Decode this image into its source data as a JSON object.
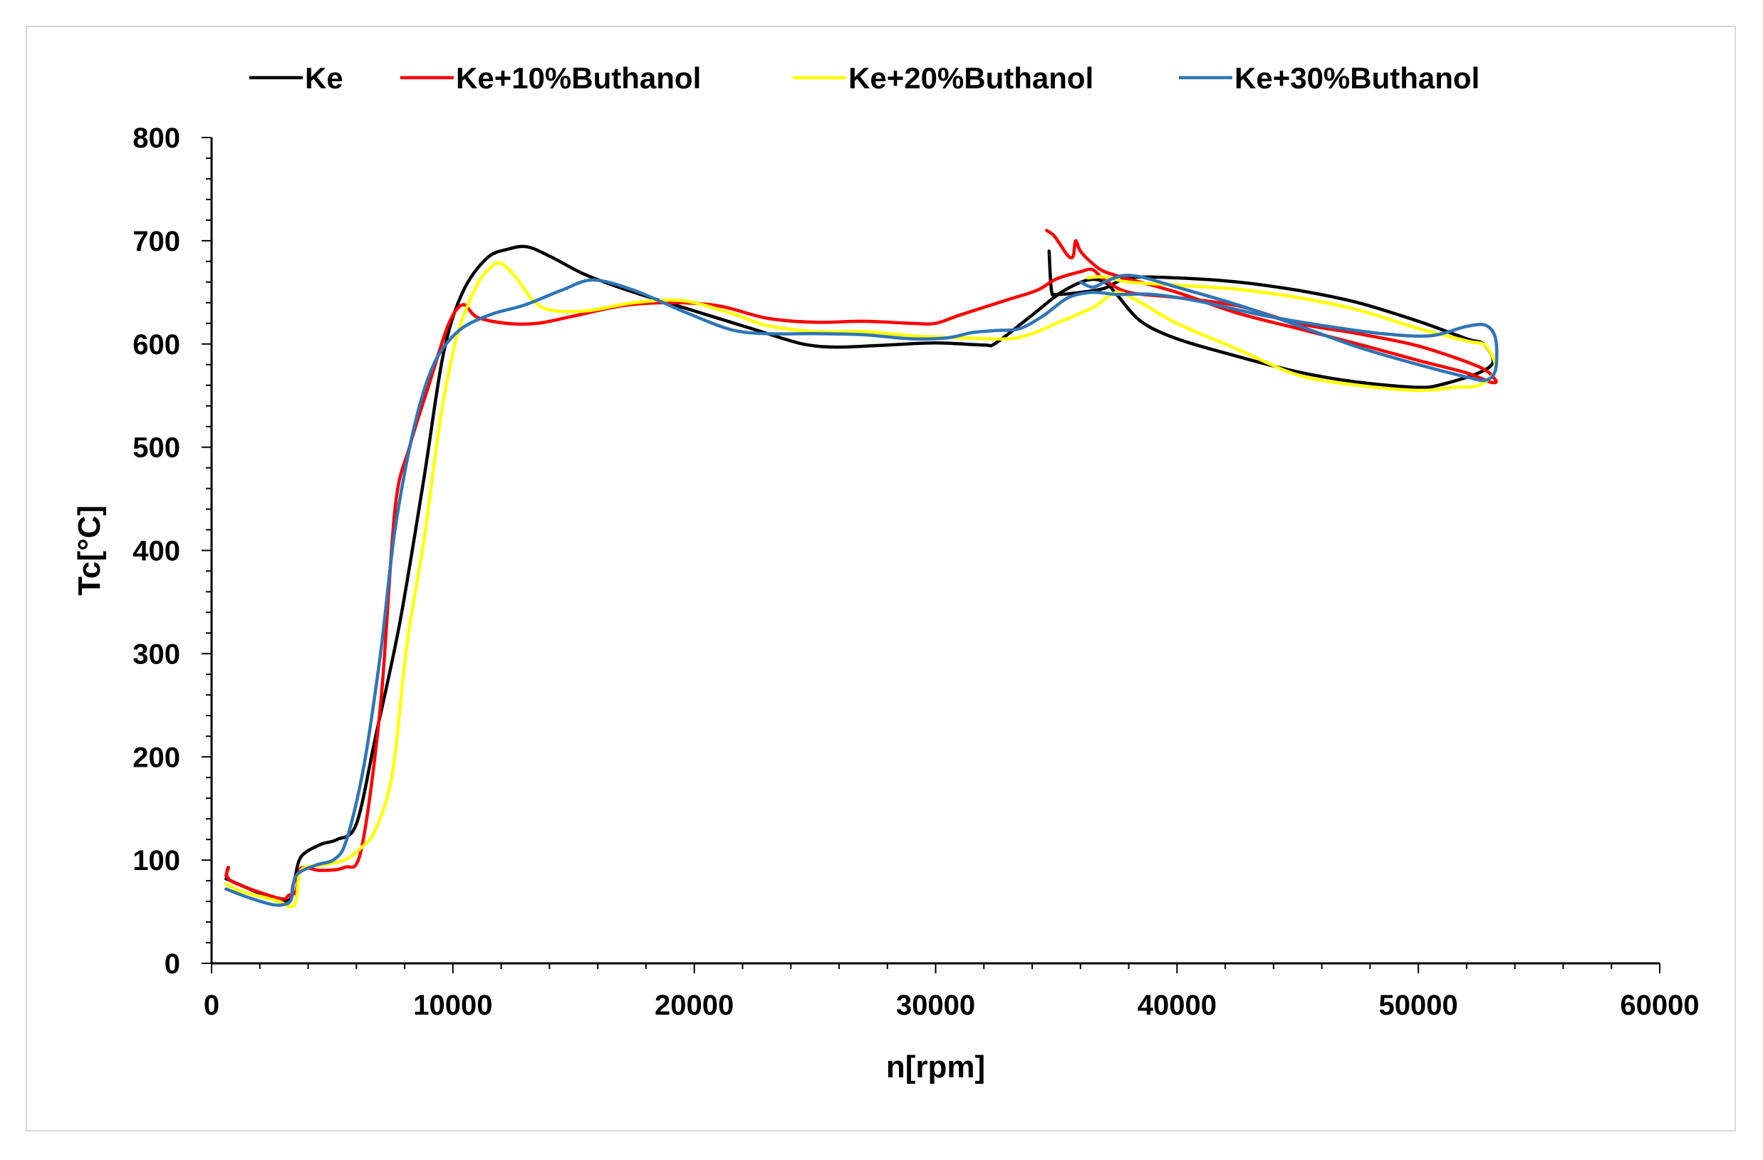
{
  "chart_data": {
    "type": "line",
    "title": "",
    "xlabel": "n[rpm]",
    "ylabel": "Tc[°C]",
    "xlim": [
      0,
      60000
    ],
    "ylim": [
      0,
      800
    ],
    "x_ticks": [
      0,
      10000,
      20000,
      30000,
      40000,
      50000,
      60000
    ],
    "y_ticks": [
      0,
      100,
      200,
      300,
      400,
      500,
      600,
      700,
      800
    ],
    "x_tick_labels": [
      "0",
      "10000",
      "20000",
      "30000",
      "40000",
      "50000",
      "60000"
    ],
    "y_tick_labels": [
      "0",
      "100",
      "200",
      "300",
      "400",
      "500",
      "600",
      "700",
      "800"
    ],
    "grid": false,
    "legend_position": "top",
    "series": [
      {
        "name": "Ke",
        "color": "#000000",
        "points": [
          [
            600,
            82
          ],
          [
            3000,
            60
          ],
          [
            3400,
            78
          ],
          [
            3700,
            103
          ],
          [
            4500,
            115
          ],
          [
            5200,
            120
          ],
          [
            6000,
            135
          ],
          [
            6800,
            220
          ],
          [
            7800,
            330
          ],
          [
            8800,
            470
          ],
          [
            9600,
            590
          ],
          [
            10400,
            650
          ],
          [
            11400,
            683
          ],
          [
            12300,
            692
          ],
          [
            13100,
            694
          ],
          [
            14100,
            684
          ],
          [
            15500,
            667
          ],
          [
            17500,
            650
          ],
          [
            20000,
            632
          ],
          [
            22500,
            614
          ],
          [
            24500,
            600
          ],
          [
            26000,
            597
          ],
          [
            28000,
            599
          ],
          [
            30000,
            601
          ],
          [
            32000,
            599
          ],
          [
            32500,
            601
          ],
          [
            34000,
            628
          ],
          [
            35200,
            650
          ],
          [
            36300,
            662
          ],
          [
            37000,
            660
          ],
          [
            37500,
            648
          ],
          [
            38500,
            622
          ],
          [
            40000,
            605
          ],
          [
            42500,
            588
          ],
          [
            45000,
            573
          ],
          [
            47500,
            563
          ],
          [
            50000,
            558
          ],
          [
            51000,
            561
          ],
          [
            52500,
            572
          ],
          [
            53100,
            583
          ],
          [
            52700,
            600
          ],
          [
            52000,
            605
          ],
          [
            50000,
            622
          ],
          [
            47500,
            640
          ],
          [
            45000,
            652
          ],
          [
            42500,
            660
          ],
          [
            40000,
            664
          ],
          [
            38000,
            664
          ],
          [
            37000,
            654
          ],
          [
            36000,
            650
          ],
          [
            35000,
            648
          ],
          [
            34800,
            652
          ],
          [
            34700,
            690
          ]
        ]
      },
      {
        "name": "Ke+10%Buthanol",
        "color": "#ff0000",
        "points": [
          [
            600,
            85
          ],
          [
            700,
            93
          ],
          [
            800,
            80
          ],
          [
            2800,
            63
          ],
          [
            3200,
            66
          ],
          [
            3500,
            70
          ],
          [
            3700,
            92
          ],
          [
            4500,
            90
          ],
          [
            5500,
            93
          ],
          [
            6200,
            110
          ],
          [
            7000,
            250
          ],
          [
            7600,
            440
          ],
          [
            8200,
            500
          ],
          [
            9000,
            560
          ],
          [
            9800,
            618
          ],
          [
            10400,
            638
          ],
          [
            11000,
            626
          ],
          [
            12200,
            620
          ],
          [
            13500,
            620
          ],
          [
            15000,
            627
          ],
          [
            17000,
            637
          ],
          [
            19000,
            640
          ],
          [
            21000,
            637
          ],
          [
            23000,
            625
          ],
          [
            25000,
            621
          ],
          [
            27000,
            622
          ],
          [
            29000,
            620
          ],
          [
            30000,
            620
          ],
          [
            31000,
            628
          ],
          [
            33000,
            643
          ],
          [
            34200,
            652
          ],
          [
            35000,
            663
          ],
          [
            36000,
            670
          ],
          [
            36500,
            672
          ],
          [
            37000,
            662
          ],
          [
            38000,
            650
          ],
          [
            40000,
            645
          ],
          [
            42500,
            637
          ],
          [
            45000,
            620
          ],
          [
            47500,
            610
          ],
          [
            50000,
            598
          ],
          [
            52500,
            578
          ],
          [
            53200,
            565
          ],
          [
            53000,
            563
          ],
          [
            52000,
            572
          ],
          [
            50000,
            584
          ],
          [
            47500,
            600
          ],
          [
            45000,
            615
          ],
          [
            42500,
            630
          ],
          [
            40000,
            650
          ],
          [
            38000,
            663
          ],
          [
            37000,
            670
          ],
          [
            36500,
            678
          ],
          [
            36000,
            690
          ],
          [
            35800,
            700
          ],
          [
            35700,
            685
          ],
          [
            35500,
            685
          ],
          [
            35200,
            695
          ],
          [
            34900,
            705
          ],
          [
            34600,
            710
          ]
        ]
      },
      {
        "name": "Ke+20%Buthanol",
        "color": "#ffff00",
        "points": [
          [
            600,
            77
          ],
          [
            1200,
            70
          ],
          [
            2800,
            60
          ],
          [
            3200,
            55
          ],
          [
            3500,
            60
          ],
          [
            3700,
            90
          ],
          [
            4500,
            95
          ],
          [
            5500,
            100
          ],
          [
            6200,
            112
          ],
          [
            6800,
            130
          ],
          [
            7500,
            185
          ],
          [
            8100,
            310
          ],
          [
            8800,
            410
          ],
          [
            9500,
            530
          ],
          [
            10200,
            610
          ],
          [
            11000,
            657
          ],
          [
            11600,
            675
          ],
          [
            12000,
            678
          ],
          [
            12600,
            665
          ],
          [
            13300,
            643
          ],
          [
            14000,
            633
          ],
          [
            15500,
            632
          ],
          [
            17500,
            640
          ],
          [
            19500,
            642
          ],
          [
            21500,
            630
          ],
          [
            23000,
            618
          ],
          [
            25000,
            612
          ],
          [
            27000,
            612
          ],
          [
            29000,
            608
          ],
          [
            31000,
            606
          ],
          [
            33000,
            605
          ],
          [
            34000,
            610
          ],
          [
            35000,
            620
          ],
          [
            36500,
            635
          ],
          [
            37500,
            650
          ],
          [
            38500,
            640
          ],
          [
            40000,
            620
          ],
          [
            42500,
            595
          ],
          [
            45000,
            570
          ],
          [
            47500,
            560
          ],
          [
            50000,
            555
          ],
          [
            51500,
            558
          ],
          [
            52500,
            560
          ],
          [
            53200,
            575
          ],
          [
            52800,
            598
          ],
          [
            52000,
            603
          ],
          [
            50000,
            615
          ],
          [
            47500,
            633
          ],
          [
            45000,
            645
          ],
          [
            42500,
            653
          ],
          [
            40000,
            657
          ],
          [
            38000,
            660
          ],
          [
            37000,
            665
          ],
          [
            36300,
            664
          ]
        ]
      },
      {
        "name": "Ke+30%Buthanol",
        "color": "#2e75b6",
        "points": [
          [
            600,
            72
          ],
          [
            1500,
            64
          ],
          [
            2500,
            57
          ],
          [
            3000,
            57
          ],
          [
            3300,
            62
          ],
          [
            3500,
            85
          ],
          [
            4300,
            95
          ],
          [
            5100,
            101
          ],
          [
            5600,
            120
          ],
          [
            6300,
            190
          ],
          [
            7000,
            300
          ],
          [
            7600,
            420
          ],
          [
            8400,
            520
          ],
          [
            9200,
            580
          ],
          [
            10200,
            612
          ],
          [
            11500,
            628
          ],
          [
            13000,
            638
          ],
          [
            14500,
            652
          ],
          [
            15800,
            662
          ],
          [
            17500,
            652
          ],
          [
            19500,
            632
          ],
          [
            21500,
            614
          ],
          [
            23000,
            610
          ],
          [
            25000,
            610
          ],
          [
            27000,
            609
          ],
          [
            29000,
            605
          ],
          [
            30500,
            606
          ],
          [
            31500,
            611
          ],
          [
            32500,
            613
          ],
          [
            33500,
            615
          ],
          [
            34500,
            628
          ],
          [
            35500,
            645
          ],
          [
            36500,
            650
          ],
          [
            37500,
            648
          ],
          [
            39000,
            648
          ],
          [
            41000,
            641
          ],
          [
            43500,
            628
          ],
          [
            46000,
            618
          ],
          [
            48500,
            610
          ],
          [
            50500,
            608
          ],
          [
            52000,
            617
          ],
          [
            52800,
            618
          ],
          [
            53200,
            605
          ],
          [
            53200,
            575
          ],
          [
            52800,
            565
          ],
          [
            52000,
            568
          ],
          [
            50000,
            580
          ],
          [
            47500,
            597
          ],
          [
            45000,
            618
          ],
          [
            42500,
            638
          ],
          [
            40000,
            655
          ],
          [
            38500,
            665
          ],
          [
            37700,
            666
          ],
          [
            37000,
            660
          ],
          [
            36500,
            655
          ],
          [
            36000,
            660
          ]
        ]
      }
    ]
  }
}
